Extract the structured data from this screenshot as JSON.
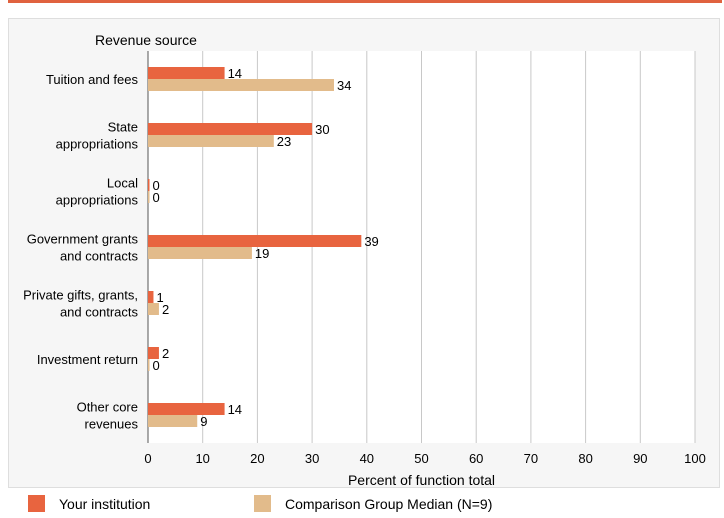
{
  "colors": {
    "your_institution": "#e8643f",
    "comparison": "#e2bb8b",
    "grid": "#c8c8c8",
    "axis": "#555555"
  },
  "legend": {
    "items": [
      {
        "label": "Your institution",
        "color": "#e8643f"
      },
      {
        "label": "Comparison Group Median (N=9)",
        "color": "#e2bb8b"
      }
    ]
  },
  "chart_data": {
    "type": "bar",
    "orientation": "horizontal",
    "title": "Revenue source",
    "xlabel": "Percent of function total",
    "xlim": [
      0,
      100
    ],
    "xticks": [
      0,
      10,
      20,
      30,
      40,
      50,
      60,
      70,
      80,
      90,
      100
    ],
    "grid": true,
    "categories": [
      [
        "Tuition and fees"
      ],
      [
        "State",
        "appropriations"
      ],
      [
        "Local",
        "appropriations"
      ],
      [
        "Government grants",
        "and contracts"
      ],
      [
        "Private gifts, grants,",
        "and contracts"
      ],
      [
        "Investment return"
      ],
      [
        "Other core",
        "revenues"
      ]
    ],
    "series": [
      {
        "name": "Your institution",
        "values": [
          14,
          30,
          0,
          39,
          1,
          2,
          14
        ]
      },
      {
        "name": "Comparison Group Median (N=9)",
        "values": [
          34,
          23,
          0,
          19,
          2,
          0,
          9
        ]
      }
    ]
  }
}
